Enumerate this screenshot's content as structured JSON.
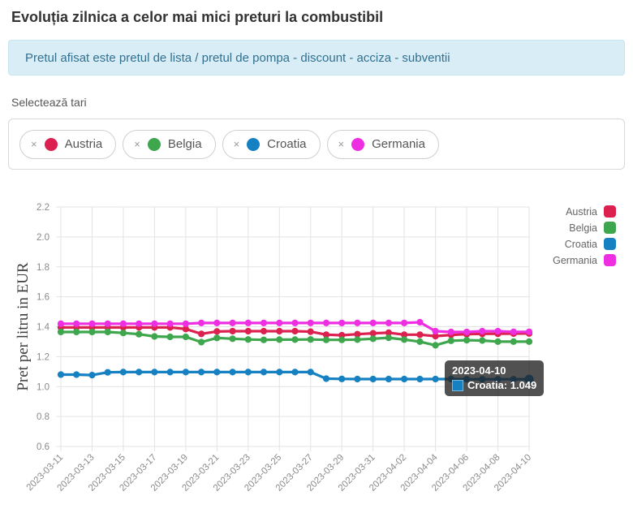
{
  "header": {
    "title": "Evoluția zilnica a celor mai mici preturi la combustibil",
    "info_banner": "Pretul afisat este pretul de lista / pretul de pompa - discount - acciza - subventii"
  },
  "selector": {
    "label": "Selectează tari",
    "remove_icon": "×",
    "countries": [
      {
        "name": "Austria",
        "color": "#dc2150"
      },
      {
        "name": "Belgia",
        "color": "#3ea64c"
      },
      {
        "name": "Croatia",
        "color": "#1580c2"
      },
      {
        "name": "Germania",
        "color": "#ee2ee2"
      }
    ]
  },
  "chart_data": {
    "type": "line",
    "title": "",
    "xlabel": "",
    "ylabel": "Pret per litru in EUR",
    "ylim": [
      0.6,
      2.2
    ],
    "ytick_step": 0.2,
    "grid": true,
    "legend_position": "right",
    "x": [
      "2023-03-11",
      "2023-03-12",
      "2023-03-13",
      "2023-03-14",
      "2023-03-15",
      "2023-03-16",
      "2023-03-17",
      "2023-03-18",
      "2023-03-19",
      "2023-03-20",
      "2023-03-21",
      "2023-03-22",
      "2023-03-23",
      "2023-03-24",
      "2023-03-25",
      "2023-03-26",
      "2023-03-27",
      "2023-03-28",
      "2023-03-29",
      "2023-03-30",
      "2023-03-31",
      "2023-04-01",
      "2023-04-02",
      "2023-04-03",
      "2023-04-04",
      "2023-04-05",
      "2023-04-06",
      "2023-04-07",
      "2023-04-08",
      "2023-04-09",
      "2023-04-10"
    ],
    "x_tick_labels": [
      "2023-03-11",
      "2023-03-13",
      "2023-03-15",
      "2023-03-17",
      "2023-03-19",
      "2023-03-21",
      "2023-03-23",
      "2023-03-25",
      "2023-03-27",
      "2023-03-29",
      "2023-03-31",
      "2023-04-02",
      "2023-04-04",
      "2023-04-06",
      "2023-04-08",
      "2023-04-10"
    ],
    "series": [
      {
        "name": "Austria",
        "color": "#dc2150",
        "values": [
          1.395,
          1.395,
          1.395,
          1.395,
          1.395,
          1.395,
          1.395,
          1.395,
          1.385,
          1.352,
          1.368,
          1.37,
          1.37,
          1.37,
          1.37,
          1.37,
          1.367,
          1.347,
          1.343,
          1.35,
          1.356,
          1.36,
          1.347,
          1.347,
          1.337,
          1.345,
          1.35,
          1.352,
          1.353,
          1.354,
          1.355
        ]
      },
      {
        "name": "Belgia",
        "color": "#3ea64c",
        "values": [
          1.365,
          1.365,
          1.365,
          1.365,
          1.358,
          1.35,
          1.335,
          1.332,
          1.332,
          1.297,
          1.325,
          1.32,
          1.315,
          1.312,
          1.314,
          1.314,
          1.315,
          1.312,
          1.312,
          1.314,
          1.32,
          1.326,
          1.314,
          1.3,
          1.276,
          1.306,
          1.31,
          1.308,
          1.3,
          1.3,
          1.3
        ]
      },
      {
        "name": "Croatia",
        "color": "#1580c2",
        "values": [
          1.08,
          1.08,
          1.077,
          1.095,
          1.097,
          1.097,
          1.097,
          1.097,
          1.097,
          1.097,
          1.097,
          1.097,
          1.097,
          1.097,
          1.097,
          1.097,
          1.097,
          1.053,
          1.051,
          1.05,
          1.05,
          1.05,
          1.05,
          1.05,
          1.05,
          1.05,
          1.049,
          1.049,
          1.049,
          1.049,
          1.049
        ]
      },
      {
        "name": "Germania",
        "color": "#ee2ee2",
        "values": [
          1.42,
          1.42,
          1.42,
          1.42,
          1.42,
          1.42,
          1.42,
          1.42,
          1.42,
          1.425,
          1.425,
          1.425,
          1.425,
          1.425,
          1.425,
          1.425,
          1.425,
          1.425,
          1.425,
          1.425,
          1.425,
          1.425,
          1.425,
          1.43,
          1.37,
          1.365,
          1.365,
          1.37,
          1.37,
          1.366,
          1.366
        ]
      }
    ],
    "tooltip": {
      "date": "2023-04-10",
      "series": "Croatia",
      "value": "1.049",
      "line": "Croatia: 1.049"
    }
  }
}
